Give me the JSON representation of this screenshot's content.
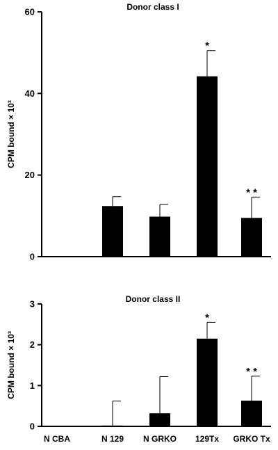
{
  "chart_data": [
    {
      "type": "bar",
      "title": "Donor class I",
      "ylabel": "CPM bound × 10³",
      "ylim": [
        0,
        60
      ],
      "yticks": [
        "0",
        "20",
        "40",
        "60"
      ],
      "categories": [
        "N CBA",
        "N 129",
        "N GRKO",
        "129Tx",
        "GRKO  Tx"
      ],
      "values": [
        0,
        12.4,
        9.8,
        44.2,
        9.5
      ],
      "errors": [
        0,
        2.3,
        3.0,
        6.3,
        5.1
      ],
      "annotations": [
        "",
        "",
        "",
        "*",
        "* *"
      ],
      "show_category_labels": false
    },
    {
      "type": "bar",
      "title": "Donor class II",
      "ylabel": "CPM bound × 10³",
      "ylim": [
        0,
        3
      ],
      "yticks": [
        "0",
        "1",
        "2",
        "3"
      ],
      "categories": [
        "N CBA",
        "N 129",
        "N GRKO",
        "129Tx",
        "GRKO  Tx"
      ],
      "values": [
        0,
        0.02,
        0.32,
        2.15,
        0.63
      ],
      "errors": [
        0,
        0.6,
        0.9,
        0.4,
        0.6
      ],
      "annotations": [
        "",
        "",
        "",
        "*",
        "* *"
      ],
      "show_category_labels": true
    }
  ]
}
